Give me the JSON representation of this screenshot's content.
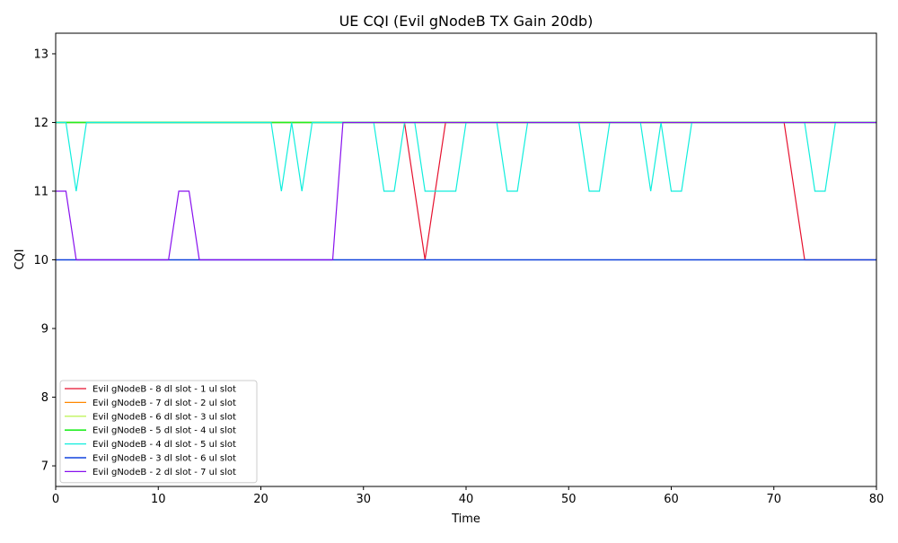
{
  "chart_data": {
    "type": "line",
    "title": "UE CQI (Evil gNodeB TX Gain 20db)",
    "xlabel": "Time",
    "ylabel": "CQI",
    "xlim": [
      0,
      80
    ],
    "ylim": [
      6.7,
      13.3
    ],
    "xticks": [
      0,
      10,
      20,
      30,
      40,
      50,
      60,
      70,
      80
    ],
    "yticks": [
      7,
      8,
      9,
      10,
      11,
      12,
      13
    ],
    "grid": false,
    "legend_position": "lower-left",
    "series": [
      {
        "name": "Evil gNodeB - 8 dl slot - 1 ul slot",
        "color": "#e6112e",
        "points": [
          [
            0,
            12
          ],
          [
            34,
            12
          ],
          [
            36,
            10
          ],
          [
            38,
            12
          ],
          [
            71,
            12
          ],
          [
            73,
            10
          ],
          [
            80,
            10
          ]
        ]
      },
      {
        "name": "Evil gNodeB - 7 dl slot - 2 ul slot",
        "color": "#ff8800",
        "points": [
          [
            0,
            12
          ],
          [
            80,
            12
          ]
        ]
      },
      {
        "name": "Evil gNodeB - 6 dl slot - 3 ul slot",
        "color": "#b3f23a",
        "points": [
          [
            0,
            12
          ],
          [
            80,
            12
          ]
        ]
      },
      {
        "name": "Evil gNodeB - 5 dl slot - 4 ul slot",
        "color": "#22ee22",
        "points": [
          [
            0,
            12
          ],
          [
            80,
            12
          ]
        ]
      },
      {
        "name": "Evil gNodeB - 4 dl slot - 5 ul slot",
        "color": "#11eedd",
        "points": [
          [
            0,
            12
          ],
          [
            1,
            12
          ],
          [
            2,
            11
          ],
          [
            3,
            12
          ],
          [
            21,
            12
          ],
          [
            22,
            11
          ],
          [
            23,
            12
          ],
          [
            24,
            11
          ],
          [
            25,
            12
          ],
          [
            31,
            12
          ],
          [
            32,
            11
          ],
          [
            33,
            11
          ],
          [
            34,
            12
          ],
          [
            35,
            12
          ],
          [
            36,
            11
          ],
          [
            39,
            11
          ],
          [
            40,
            12
          ],
          [
            43,
            12
          ],
          [
            44,
            11
          ],
          [
            45,
            11
          ],
          [
            46,
            12
          ],
          [
            51,
            12
          ],
          [
            52,
            11
          ],
          [
            53,
            11
          ],
          [
            54,
            12
          ],
          [
            57,
            12
          ],
          [
            58,
            11
          ],
          [
            59,
            12
          ],
          [
            60,
            11
          ],
          [
            61,
            11
          ],
          [
            62,
            12
          ],
          [
            73,
            12
          ],
          [
            74,
            11
          ],
          [
            75,
            11
          ],
          [
            76,
            12
          ],
          [
            80,
            12
          ]
        ]
      },
      {
        "name": "Evil gNodeB - 3 dl slot - 6 ul slot",
        "color": "#1144dd",
        "points": [
          [
            0,
            10
          ],
          [
            80,
            10
          ]
        ]
      },
      {
        "name": "Evil gNodeB - 2 dl slot - 7 ul slot",
        "color": "#8811ee",
        "points": [
          [
            0,
            11
          ],
          [
            1,
            11
          ],
          [
            2,
            10
          ],
          [
            11,
            10
          ],
          [
            12,
            11
          ],
          [
            13,
            11
          ],
          [
            14,
            10
          ],
          [
            27,
            10
          ],
          [
            28,
            12
          ],
          [
            80,
            12
          ]
        ]
      }
    ]
  }
}
